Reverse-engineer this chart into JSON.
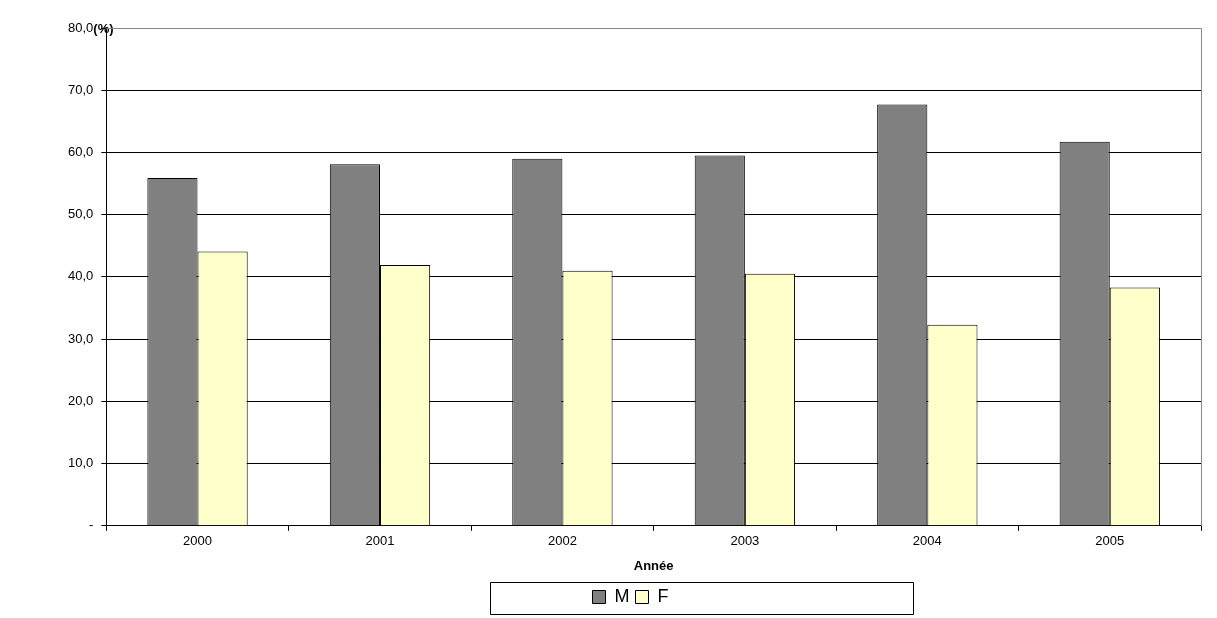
{
  "chart_data": {
    "type": "bar",
    "xlabel": "Année",
    "ylabel": "(%)",
    "categories": [
      "2000",
      "2001",
      "2002",
      "2003",
      "2004",
      "2005"
    ],
    "series": [
      {
        "name": "M",
        "color": "#808080",
        "values": [
          55.9,
          58.1,
          59.0,
          59.5,
          67.7,
          61.7
        ]
      },
      {
        "name": "F",
        "color": "#ffffcc",
        "values": [
          44.1,
          41.9,
          41.0,
          40.5,
          32.3,
          38.3
        ]
      }
    ],
    "ylim": [
      0,
      80
    ],
    "yticks": [
      {
        "value": 0,
        "label": "-"
      },
      {
        "value": 10,
        "label": "10,0"
      },
      {
        "value": 20,
        "label": "20,0"
      },
      {
        "value": 30,
        "label": "30,0"
      },
      {
        "value": 40,
        "label": "40,0"
      },
      {
        "value": 50,
        "label": "50,0"
      },
      {
        "value": 60,
        "label": "60,0"
      },
      {
        "value": 70,
        "label": "70,0"
      },
      {
        "value": 80,
        "label": "80,0"
      }
    ],
    "grid": "y",
    "legend": "bottom"
  }
}
